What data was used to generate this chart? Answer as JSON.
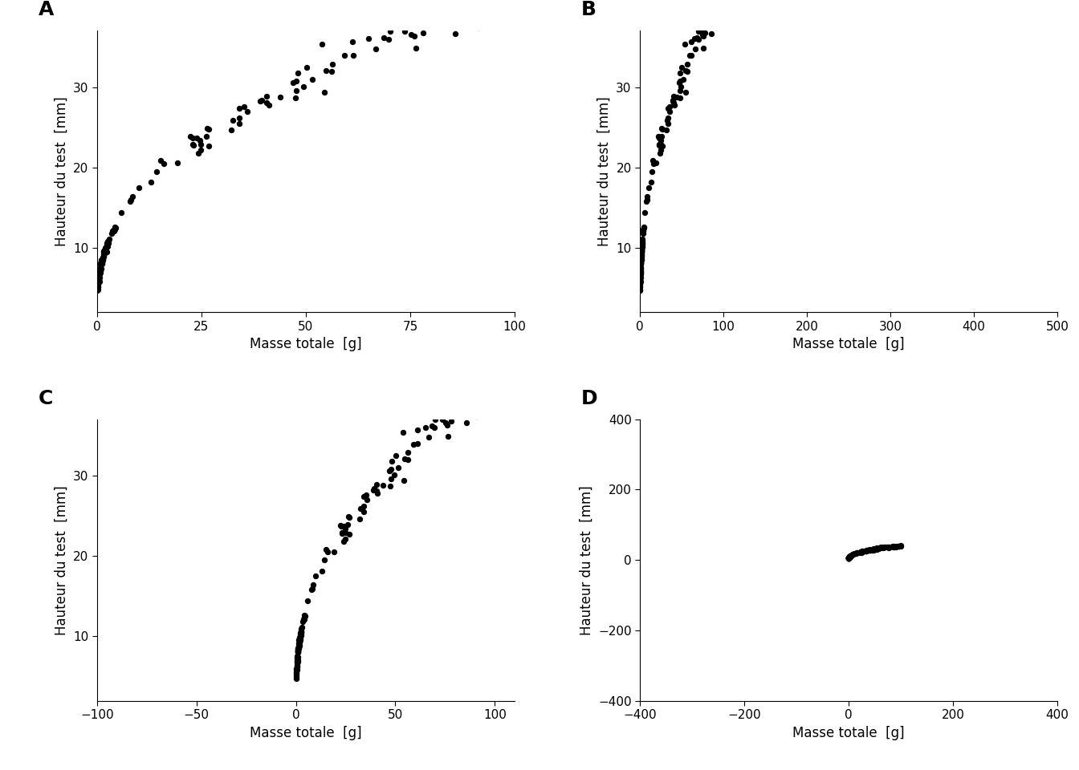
{
  "xlabel": "Masse totale  [g]",
  "ylabel": "Hauteur du test  [mm]",
  "panel_labels": [
    "A",
    "B",
    "C",
    "D"
  ],
  "dot_color": "#000000",
  "dot_size": 28,
  "dot_alpha": 1.0,
  "panels": [
    {
      "xlim": [
        0,
        100
      ],
      "ylim": [
        2,
        37
      ],
      "xticks": [
        0,
        25,
        50,
        75,
        100
      ],
      "yticks": [
        10,
        20,
        30
      ]
    },
    {
      "xlim": [
        0,
        500
      ],
      "ylim": [
        2,
        37
      ],
      "xticks": [
        0,
        100,
        200,
        300,
        400,
        500
      ],
      "yticks": [
        10,
        20,
        30
      ]
    },
    {
      "xlim": [
        -100,
        110
      ],
      "ylim": [
        2,
        37
      ],
      "xticks": [
        -100,
        -50,
        0,
        50,
        100
      ],
      "yticks": [
        10,
        20,
        30
      ]
    },
    {
      "xlim": [
        -400,
        400
      ],
      "ylim": [
        -400,
        400
      ],
      "xticks": [
        -400,
        -200,
        0,
        200,
        400
      ],
      "yticks": [
        -400,
        -200,
        0,
        200,
        400
      ]
    }
  ],
  "background_color": "#ffffff",
  "label_fontsize": 12,
  "tick_fontsize": 11,
  "panel_label_fontsize": 18
}
